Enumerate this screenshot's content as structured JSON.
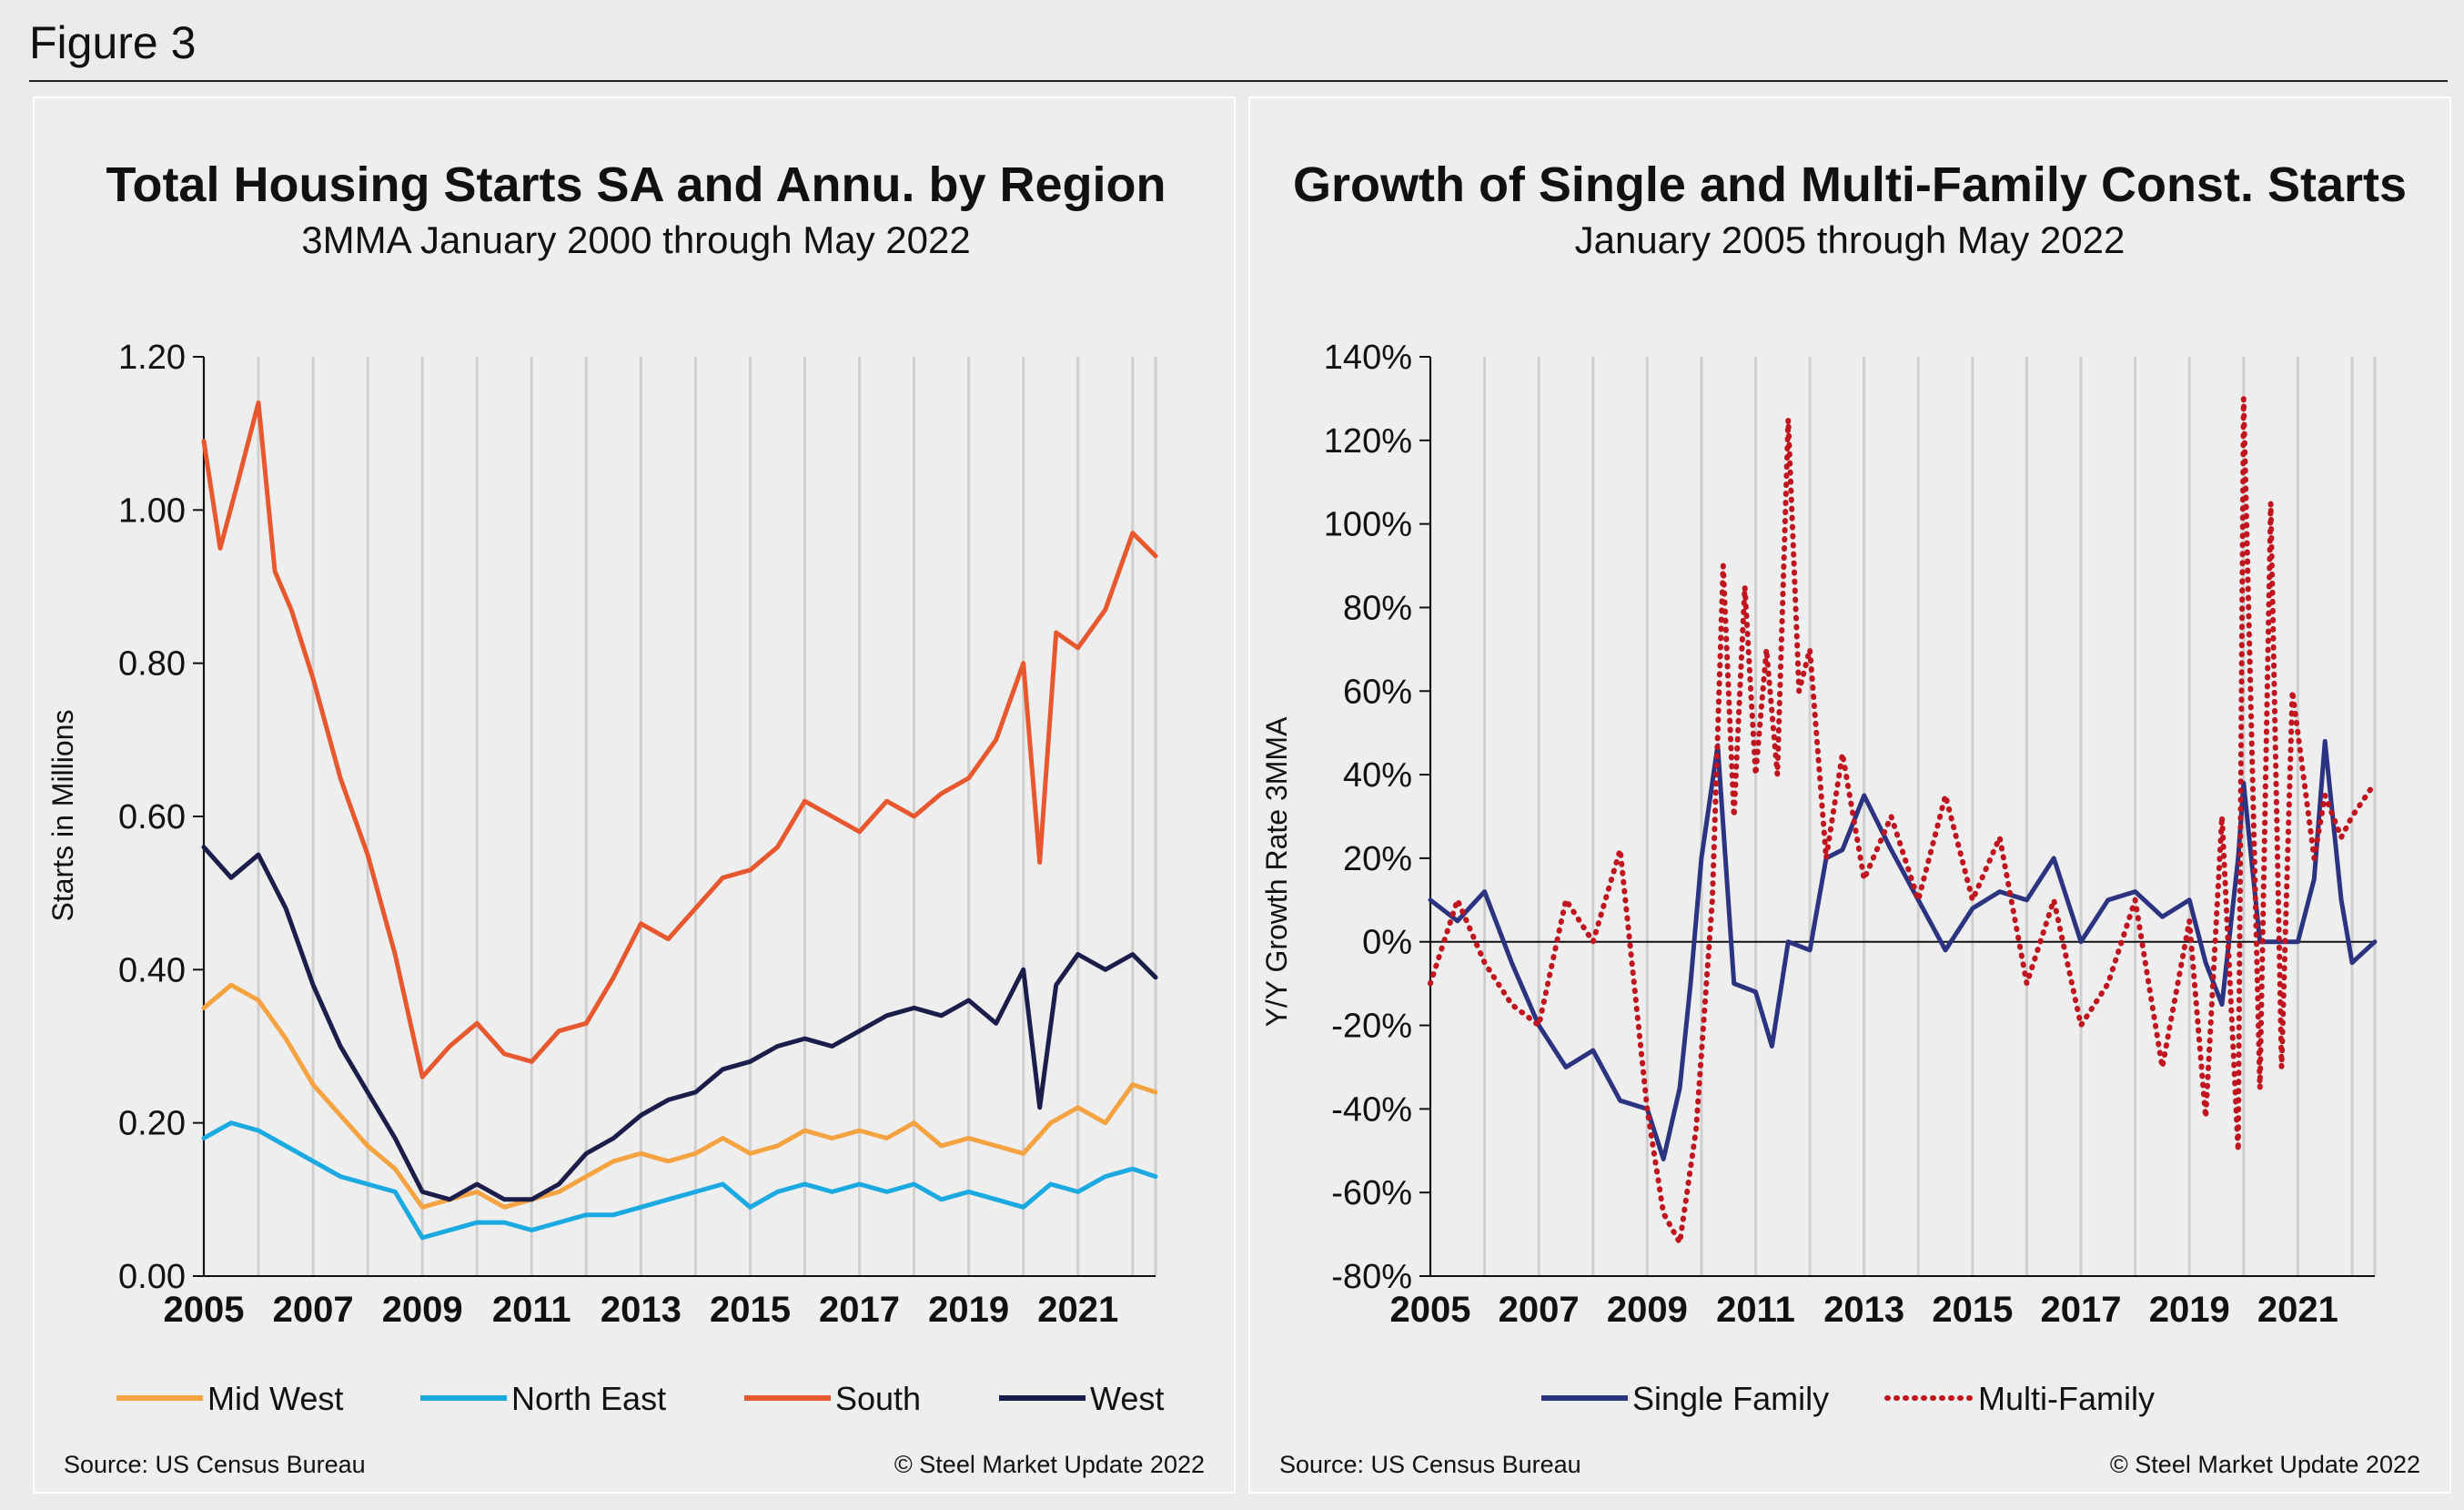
{
  "figure_label": "Figure 3",
  "chart_data": [
    {
      "type": "line",
      "title": "Total Housing Starts SA and Annu. by Region",
      "subtitle": "3MMA January 2000 through May 2022",
      "ylabel": "Starts in Millions",
      "xlabel": "",
      "ylim": [
        0,
        1.2
      ],
      "y_ticks": [
        "0.00",
        "0.20",
        "0.40",
        "0.60",
        "0.80",
        "1.00",
        "1.20"
      ],
      "x_ticks": [
        "2005",
        "2007",
        "2009",
        "2011",
        "2013",
        "2015",
        "2017",
        "2019",
        "2021"
      ],
      "x_range": [
        2005.0,
        2022.42
      ],
      "grid": true,
      "legend_position": "bottom",
      "source": "Source: US Census Bureau",
      "copyright": "© Steel Market Update 2022",
      "series": [
        {
          "name": "Mid West",
          "color": "#f4a340",
          "x": [
            2005.0,
            2005.5,
            2006.0,
            2006.5,
            2007.0,
            2007.5,
            2008.0,
            2008.5,
            2009.0,
            2009.5,
            2010.0,
            2010.5,
            2011.0,
            2011.5,
            2012.0,
            2012.5,
            2013.0,
            2013.5,
            2014.0,
            2014.5,
            2015.0,
            2015.5,
            2016.0,
            2016.5,
            2017.0,
            2017.5,
            2018.0,
            2018.5,
            2019.0,
            2019.5,
            2020.0,
            2020.5,
            2021.0,
            2021.5,
            2022.0,
            2022.42
          ],
          "y": [
            0.35,
            0.38,
            0.36,
            0.31,
            0.25,
            0.21,
            0.17,
            0.14,
            0.09,
            0.1,
            0.11,
            0.09,
            0.1,
            0.11,
            0.13,
            0.15,
            0.16,
            0.15,
            0.16,
            0.18,
            0.16,
            0.17,
            0.19,
            0.18,
            0.19,
            0.18,
            0.2,
            0.17,
            0.18,
            0.17,
            0.16,
            0.2,
            0.22,
            0.2,
            0.25,
            0.24
          ]
        },
        {
          "name": "North East",
          "color": "#1ba9e1",
          "x": [
            2005.0,
            2005.5,
            2006.0,
            2006.5,
            2007.0,
            2007.5,
            2008.0,
            2008.5,
            2009.0,
            2009.5,
            2010.0,
            2010.5,
            2011.0,
            2011.5,
            2012.0,
            2012.5,
            2013.0,
            2013.5,
            2014.0,
            2014.5,
            2015.0,
            2015.5,
            2016.0,
            2016.5,
            2017.0,
            2017.5,
            2018.0,
            2018.5,
            2019.0,
            2019.5,
            2020.0,
            2020.5,
            2021.0,
            2021.5,
            2022.0,
            2022.42
          ],
          "y": [
            0.18,
            0.2,
            0.19,
            0.17,
            0.15,
            0.13,
            0.12,
            0.11,
            0.05,
            0.06,
            0.07,
            0.07,
            0.06,
            0.07,
            0.08,
            0.08,
            0.09,
            0.1,
            0.11,
            0.12,
            0.09,
            0.11,
            0.12,
            0.11,
            0.12,
            0.11,
            0.12,
            0.1,
            0.11,
            0.1,
            0.09,
            0.12,
            0.11,
            0.13,
            0.14,
            0.13
          ]
        },
        {
          "name": "South",
          "color": "#e8582e",
          "x": [
            2005.0,
            2005.3,
            2005.6,
            2006.0,
            2006.3,
            2006.6,
            2007.0,
            2007.5,
            2008.0,
            2008.5,
            2009.0,
            2009.5,
            2010.0,
            2010.5,
            2011.0,
            2011.5,
            2012.0,
            2012.5,
            2013.0,
            2013.5,
            2014.0,
            2014.5,
            2015.0,
            2015.5,
            2016.0,
            2016.5,
            2017.0,
            2017.5,
            2018.0,
            2018.5,
            2019.0,
            2019.5,
            2020.0,
            2020.3,
            2020.6,
            2021.0,
            2021.5,
            2022.0,
            2022.42
          ],
          "y": [
            1.09,
            0.95,
            1.03,
            1.14,
            0.92,
            0.87,
            0.78,
            0.65,
            0.55,
            0.42,
            0.26,
            0.3,
            0.33,
            0.29,
            0.28,
            0.32,
            0.33,
            0.39,
            0.46,
            0.44,
            0.48,
            0.52,
            0.53,
            0.56,
            0.62,
            0.6,
            0.58,
            0.62,
            0.6,
            0.63,
            0.65,
            0.7,
            0.8,
            0.54,
            0.84,
            0.82,
            0.87,
            0.97,
            0.94
          ]
        },
        {
          "name": "West",
          "color": "#1b1d4a",
          "x": [
            2005.0,
            2005.5,
            2006.0,
            2006.5,
            2007.0,
            2007.5,
            2008.0,
            2008.5,
            2009.0,
            2009.5,
            2010.0,
            2010.5,
            2011.0,
            2011.5,
            2012.0,
            2012.5,
            2013.0,
            2013.5,
            2014.0,
            2014.5,
            2015.0,
            2015.5,
            2016.0,
            2016.5,
            2017.0,
            2017.5,
            2018.0,
            2018.5,
            2019.0,
            2019.5,
            2020.0,
            2020.3,
            2020.6,
            2021.0,
            2021.5,
            2022.0,
            2022.42
          ],
          "y": [
            0.56,
            0.52,
            0.55,
            0.48,
            0.38,
            0.3,
            0.24,
            0.18,
            0.11,
            0.1,
            0.12,
            0.1,
            0.1,
            0.12,
            0.16,
            0.18,
            0.21,
            0.23,
            0.24,
            0.27,
            0.28,
            0.3,
            0.31,
            0.3,
            0.32,
            0.34,
            0.35,
            0.34,
            0.36,
            0.33,
            0.4,
            0.22,
            0.38,
            0.42,
            0.4,
            0.42,
            0.39
          ]
        }
      ]
    },
    {
      "type": "line",
      "title": "Growth of Single and Multi-Family Const. Starts",
      "subtitle": "January 2005 through May 2022",
      "ylabel": "Y/Y Growth Rate 3MMA",
      "xlabel": "",
      "ylim": [
        -80,
        140
      ],
      "y_ticks": [
        "-80%",
        "-60%",
        "-40%",
        "-20%",
        "0%",
        "20%",
        "40%",
        "60%",
        "80%",
        "100%",
        "120%",
        "140%"
      ],
      "x_ticks": [
        "2005",
        "2007",
        "2009",
        "2011",
        "2013",
        "2015",
        "2017",
        "2019",
        "2021"
      ],
      "x_range": [
        2005.0,
        2022.42
      ],
      "grid": true,
      "legend_position": "bottom",
      "source": "Source: US Census Bureau",
      "copyright": "© Steel Market Update 2022",
      "series": [
        {
          "name": "Single Family",
          "color": "#2c3380",
          "style": "solid",
          "x": [
            2005.0,
            2005.5,
            2006.0,
            2006.5,
            2007.0,
            2007.5,
            2008.0,
            2008.5,
            2009.0,
            2009.3,
            2009.6,
            2009.8,
            2010.0,
            2010.3,
            2010.6,
            2011.0,
            2011.3,
            2011.6,
            2012.0,
            2012.3,
            2012.6,
            2013.0,
            2013.5,
            2014.0,
            2014.5,
            2015.0,
            2015.5,
            2016.0,
            2016.5,
            2017.0,
            2017.5,
            2018.0,
            2018.5,
            2019.0,
            2019.3,
            2019.6,
            2019.9,
            2020.0,
            2020.3,
            2020.6,
            2021.0,
            2021.3,
            2021.5,
            2021.8,
            2022.0,
            2022.42
          ],
          "y": [
            10,
            5,
            12,
            -5,
            -20,
            -30,
            -26,
            -38,
            -40,
            -52,
            -35,
            -10,
            20,
            47,
            -10,
            -12,
            -25,
            0,
            -2,
            20,
            22,
            35,
            22,
            10,
            -2,
            8,
            12,
            10,
            20,
            0,
            10,
            12,
            6,
            10,
            -5,
            -15,
            20,
            38,
            0,
            0,
            0,
            15,
            48,
            10,
            -5,
            0
          ]
        },
        {
          "name": "Multi-Family",
          "color": "#c0141e",
          "style": "dotted",
          "x": [
            2005.0,
            2005.5,
            2006.0,
            2006.5,
            2007.0,
            2007.5,
            2008.0,
            2008.5,
            2009.0,
            2009.3,
            2009.6,
            2009.9,
            2010.2,
            2010.4,
            2010.6,
            2010.8,
            2011.0,
            2011.2,
            2011.4,
            2011.6,
            2011.8,
            2012.0,
            2012.3,
            2012.6,
            2013.0,
            2013.5,
            2014.0,
            2014.5,
            2015.0,
            2015.5,
            2016.0,
            2016.5,
            2017.0,
            2017.5,
            2018.0,
            2018.5,
            2019.0,
            2019.3,
            2019.6,
            2019.9,
            2020.0,
            2020.3,
            2020.5,
            2020.7,
            2020.9,
            2021.0,
            2021.3,
            2021.5,
            2021.8,
            2022.0,
            2022.42
          ],
          "y": [
            -10,
            10,
            -5,
            -15,
            -20,
            10,
            0,
            22,
            -40,
            -65,
            -72,
            -45,
            10,
            90,
            30,
            85,
            40,
            70,
            40,
            125,
            60,
            70,
            20,
            45,
            15,
            30,
            10,
            35,
            10,
            25,
            -10,
            10,
            -20,
            -10,
            10,
            -30,
            5,
            -42,
            30,
            -50,
            130,
            -35,
            105,
            -30,
            60,
            50,
            20,
            35,
            25,
            30,
            38
          ]
        }
      ]
    }
  ]
}
